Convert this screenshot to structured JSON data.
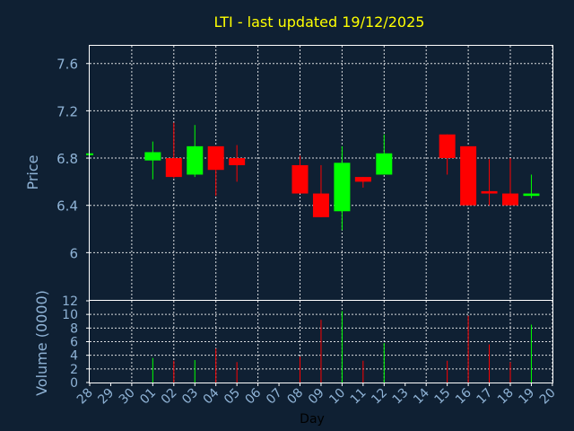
{
  "chart_data": {
    "type": "candlestick",
    "title": "LTI - last updated 19/12/2025",
    "price_panel": {
      "ylabel": "Price",
      "ylim": [
        5.6,
        7.75
      ],
      "yticks": [
        "6",
        "6.4",
        "6.8",
        "7.2",
        "7.6"
      ]
    },
    "volume_panel": {
      "ylabel": "Volume (0000)",
      "ylim": [
        0,
        12
      ],
      "yticks": [
        "0",
        "2",
        "4",
        "6",
        "8",
        "10",
        "12"
      ]
    },
    "xlabel": "Day",
    "categories": [
      "28",
      "29",
      "30",
      "01",
      "02",
      "03",
      "04",
      "05",
      "06",
      "07",
      "08",
      "09",
      "10",
      "11",
      "12",
      "13",
      "14",
      "15",
      "16",
      "17",
      "18",
      "19",
      "20"
    ],
    "candles": [
      {
        "day": "28",
        "open": 6.83,
        "high": 6.84,
        "low": 6.82,
        "close": 6.84,
        "volume": 0
      },
      {
        "day": "01",
        "open": 6.78,
        "high": 6.94,
        "low": 6.62,
        "close": 6.85,
        "volume": 3.6
      },
      {
        "day": "02",
        "open": 6.8,
        "high": 7.1,
        "low": 6.63,
        "close": 6.64,
        "volume": 3.2
      },
      {
        "day": "03",
        "open": 6.66,
        "high": 7.08,
        "low": 6.64,
        "close": 6.9,
        "volume": 3.3
      },
      {
        "day": "04",
        "open": 6.9,
        "high": 6.9,
        "low": 6.48,
        "close": 6.7,
        "volume": 5.0
      },
      {
        "day": "05",
        "open": 6.8,
        "high": 6.91,
        "low": 6.6,
        "close": 6.74,
        "volume": 3.0
      },
      {
        "day": "08",
        "open": 6.74,
        "high": 6.82,
        "low": 6.5,
        "close": 6.5,
        "volume": 3.8
      },
      {
        "day": "09",
        "open": 6.5,
        "high": 6.74,
        "low": 6.3,
        "close": 6.3,
        "volume": 9.2
      },
      {
        "day": "10",
        "open": 6.35,
        "high": 6.9,
        "low": 6.19,
        "close": 6.76,
        "volume": 10.5
      },
      {
        "day": "11",
        "open": 6.64,
        "high": 6.64,
        "low": 6.55,
        "close": 6.6,
        "volume": 3.2
      },
      {
        "day": "12",
        "open": 6.66,
        "high": 7.0,
        "low": 6.66,
        "close": 6.84,
        "volume": 5.8
      },
      {
        "day": "15",
        "open": 7.0,
        "high": 7.0,
        "low": 6.66,
        "close": 6.8,
        "volume": 3.2
      },
      {
        "day": "16",
        "open": 6.9,
        "high": 6.9,
        "low": 6.4,
        "close": 6.4,
        "volume": 9.8
      },
      {
        "day": "17",
        "open": 6.52,
        "high": 6.79,
        "low": 6.4,
        "close": 6.5,
        "volume": 5.6
      },
      {
        "day": "18",
        "open": 6.5,
        "high": 6.8,
        "low": 6.4,
        "close": 6.4,
        "volume": 3.0
      },
      {
        "day": "19",
        "open": 6.48,
        "high": 6.66,
        "low": 6.46,
        "close": 6.5,
        "volume": 8.5
      }
    ],
    "colors": {
      "up": "#00ff00",
      "down": "#ff0000",
      "grid": "#ffffff",
      "background": "#0f2033",
      "text": "#8fb3d6",
      "title": "#ffff00"
    },
    "grid": true
  }
}
